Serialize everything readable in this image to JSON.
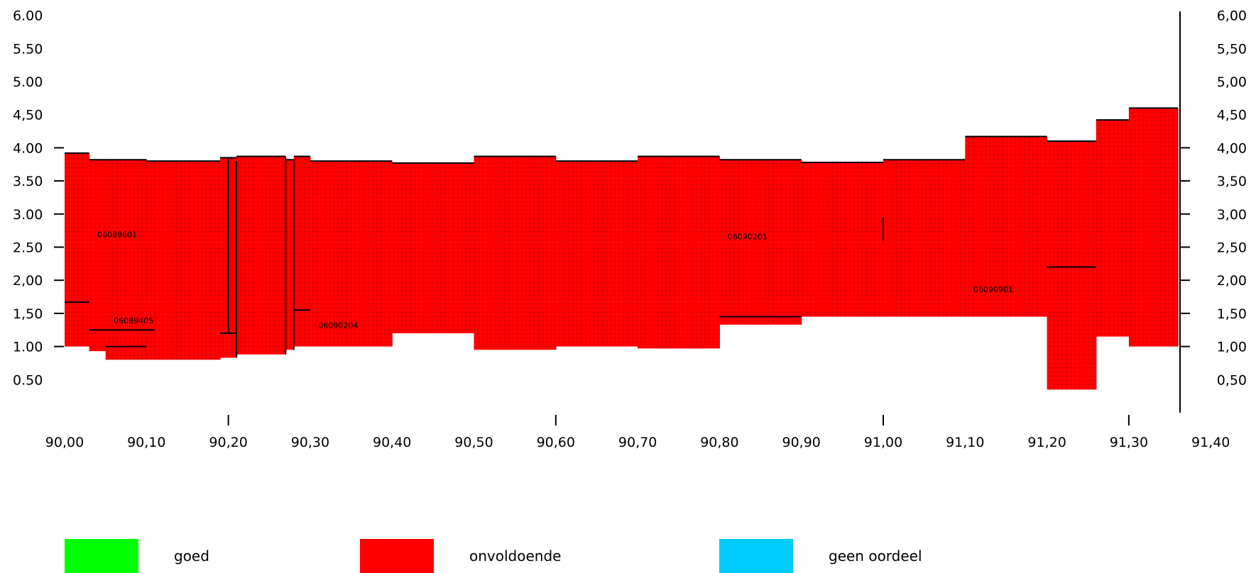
{
  "chart_data": {
    "type": "area",
    "title": "",
    "xlabel": "",
    "ylabel": "",
    "xlim": [
      90.0,
      91.4
    ],
    "ylim": [
      0,
      6
    ],
    "x_ticks": [
      "90,00",
      "90,10",
      "90,20",
      "90,30",
      "90,40",
      "90,50",
      "90,60",
      "90,70",
      "90,80",
      "90,90",
      "91,00",
      "91,10",
      "91,20",
      "91,30",
      "91,40"
    ],
    "y_ticks_left": [
      "0.50",
      "1.00",
      "1,50",
      "2,00",
      "2.50",
      "3.00",
      "3.50",
      "4.00",
      "4,50",
      "5.00",
      "5.50",
      "6.00"
    ],
    "y_ticks_right": [
      "0,50",
      "1,00",
      "1,50",
      "2,00",
      "2,50",
      "3,00",
      "3,50",
      "4,00",
      "4,50",
      "5,00",
      "5,50",
      "6,00"
    ],
    "grid": false,
    "fill_pattern": "dotted",
    "colors": {
      "goed": "#00ff00",
      "onvoldoende": "#ff0000",
      "geen_oordeel": "#00ccff",
      "dots": "#7a0000"
    },
    "series": [
      {
        "name": "onvoldoende",
        "steps": [
          {
            "x0": 90.0,
            "x1": 90.03,
            "bottom": 1.0,
            "top": 3.92
          },
          {
            "x0": 90.03,
            "x1": 90.05,
            "bottom": 0.93,
            "top": 3.82
          },
          {
            "x0": 90.05,
            "x1": 90.1,
            "bottom": 0.8,
            "top": 3.82
          },
          {
            "x0": 90.1,
            "x1": 90.19,
            "bottom": 0.8,
            "top": 3.8
          },
          {
            "x0": 90.19,
            "x1": 90.21,
            "bottom": 0.83,
            "top": 3.85
          },
          {
            "x0": 90.21,
            "x1": 90.27,
            "bottom": 0.88,
            "top": 3.87
          },
          {
            "x0": 90.27,
            "x1": 90.28,
            "bottom": 0.95,
            "top": 3.82
          },
          {
            "x0": 90.28,
            "x1": 90.3,
            "bottom": 1.0,
            "top": 3.87
          },
          {
            "x0": 90.3,
            "x1": 90.4,
            "bottom": 1.0,
            "top": 3.8
          },
          {
            "x0": 90.4,
            "x1": 90.5,
            "bottom": 1.2,
            "top": 3.77
          },
          {
            "x0": 90.5,
            "x1": 90.6,
            "bottom": 0.95,
            "top": 3.87
          },
          {
            "x0": 90.6,
            "x1": 90.7,
            "bottom": 1.0,
            "top": 3.8
          },
          {
            "x0": 90.7,
            "x1": 90.8,
            "bottom": 0.97,
            "top": 3.87
          },
          {
            "x0": 90.8,
            "x1": 90.9,
            "bottom": 1.33,
            "top": 3.82
          },
          {
            "x0": 90.9,
            "x1": 91.0,
            "bottom": 1.45,
            "top": 3.78
          },
          {
            "x0": 91.0,
            "x1": 91.1,
            "bottom": 1.45,
            "top": 3.82
          },
          {
            "x0": 91.1,
            "x1": 91.2,
            "bottom": 1.45,
            "top": 4.17
          },
          {
            "x0": 91.2,
            "x1": 91.26,
            "bottom": 0.35,
            "top": 4.1
          },
          {
            "x0": 91.26,
            "x1": 91.3,
            "bottom": 1.15,
            "top": 4.42
          },
          {
            "x0": 91.3,
            "x1": 91.36,
            "bottom": 1.0,
            "top": 4.6
          }
        ]
      }
    ],
    "segment_lines": [
      {
        "x0": 90.0,
        "x1": 90.03,
        "y": 1.67
      },
      {
        "x0": 90.03,
        "x1": 90.11,
        "y": 1.25
      },
      {
        "x0": 90.05,
        "x1": 90.1,
        "y": 1.0
      },
      {
        "x0": 90.19,
        "x1": 90.21,
        "y": 1.2
      },
      {
        "x0": 90.28,
        "x1": 90.3,
        "y": 1.55
      },
      {
        "x0": 90.8,
        "x1": 90.9,
        "y": 1.45
      },
      {
        "x0": 91.2,
        "x1": 91.26,
        "y": 2.2
      }
    ],
    "vertical_lines": [
      {
        "x": 90.2,
        "y0": 1.2,
        "y1": 3.85
      },
      {
        "x": 90.21,
        "y0": 0.83,
        "y1": 3.8
      },
      {
        "x": 90.27,
        "y0": 0.88,
        "y1": 3.85
      },
      {
        "x": 90.28,
        "y0": 0.95,
        "y1": 3.82
      },
      {
        "x": 91.0,
        "y0": 2.6,
        "y1": 2.95
      }
    ],
    "annotations": [
      {
        "text": "06089601",
        "x": 90.04,
        "y": 2.65
      },
      {
        "text": "06089405",
        "x": 90.06,
        "y": 1.35
      },
      {
        "text": "06090204",
        "x": 90.31,
        "y": 1.28
      },
      {
        "text": "06090201",
        "x": 90.81,
        "y": 2.62
      },
      {
        "text": "06090901",
        "x": 91.11,
        "y": 1.82
      }
    ],
    "legend": {
      "position": "bottom",
      "entries": [
        {
          "label": "goed",
          "color": "#00ff00"
        },
        {
          "label": "onvoldoende",
          "color": "#ff0000"
        },
        {
          "label": "geen oordeel",
          "color": "#00ccff"
        }
      ]
    }
  }
}
